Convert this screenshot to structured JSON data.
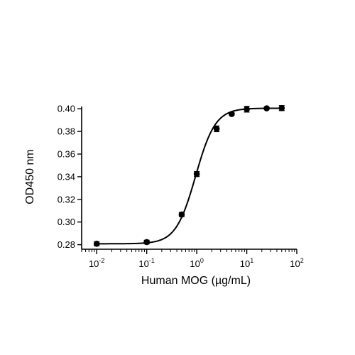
{
  "chart_data": {
    "type": "scatter",
    "title": "",
    "xlabel": "Human MOG (µg/mL)",
    "ylabel": "OD450 nm",
    "xscale": "log",
    "xlim": [
      0.005,
      100
    ],
    "ylim": [
      0.276,
      0.402
    ],
    "x_ticks": [
      {
        "value": 0.01,
        "base": "10",
        "exp": "-2"
      },
      {
        "value": 0.1,
        "base": "10",
        "exp": "-1"
      },
      {
        "value": 1,
        "base": "10",
        "exp": "0"
      },
      {
        "value": 10,
        "base": "10",
        "exp": "1"
      },
      {
        "value": 100,
        "base": "10",
        "exp": "2"
      }
    ],
    "y_ticks": [
      {
        "value": 0.28,
        "label": "0.28"
      },
      {
        "value": 0.3,
        "label": "0.30"
      },
      {
        "value": 0.32,
        "label": "0.32"
      },
      {
        "value": 0.34,
        "label": "0.34"
      },
      {
        "value": 0.36,
        "label": "0.36"
      },
      {
        "value": 0.38,
        "label": "0.38"
      },
      {
        "value": 0.4,
        "label": "0.40"
      }
    ],
    "series": [
      {
        "points": [
          {
            "x": 0.01,
            "y": 0.2808,
            "err": 0.0018
          },
          {
            "x": 0.1,
            "y": 0.2823,
            "err": 0.0016
          },
          {
            "x": 0.5,
            "y": 0.3066,
            "err": 0.0018
          },
          {
            "x": 1,
            "y": 0.3424,
            "err": 0.0022
          },
          {
            "x": 2.5,
            "y": 0.3823,
            "err": 0.0025
          },
          {
            "x": 5,
            "y": 0.3954,
            "err": 0.001
          },
          {
            "x": 10,
            "y": 0.3996,
            "err": 0.0025
          },
          {
            "x": 25,
            "y": 0.4004,
            "err": 0.001
          },
          {
            "x": 50,
            "y": 0.4006,
            "err": 0.0022
          }
        ],
        "fit": {
          "model": "4PL",
          "bottom": 0.2808,
          "top": 0.4005,
          "ec50": 0.95,
          "hill": 2.2
        }
      }
    ],
    "grid": false,
    "legend": "none"
  }
}
